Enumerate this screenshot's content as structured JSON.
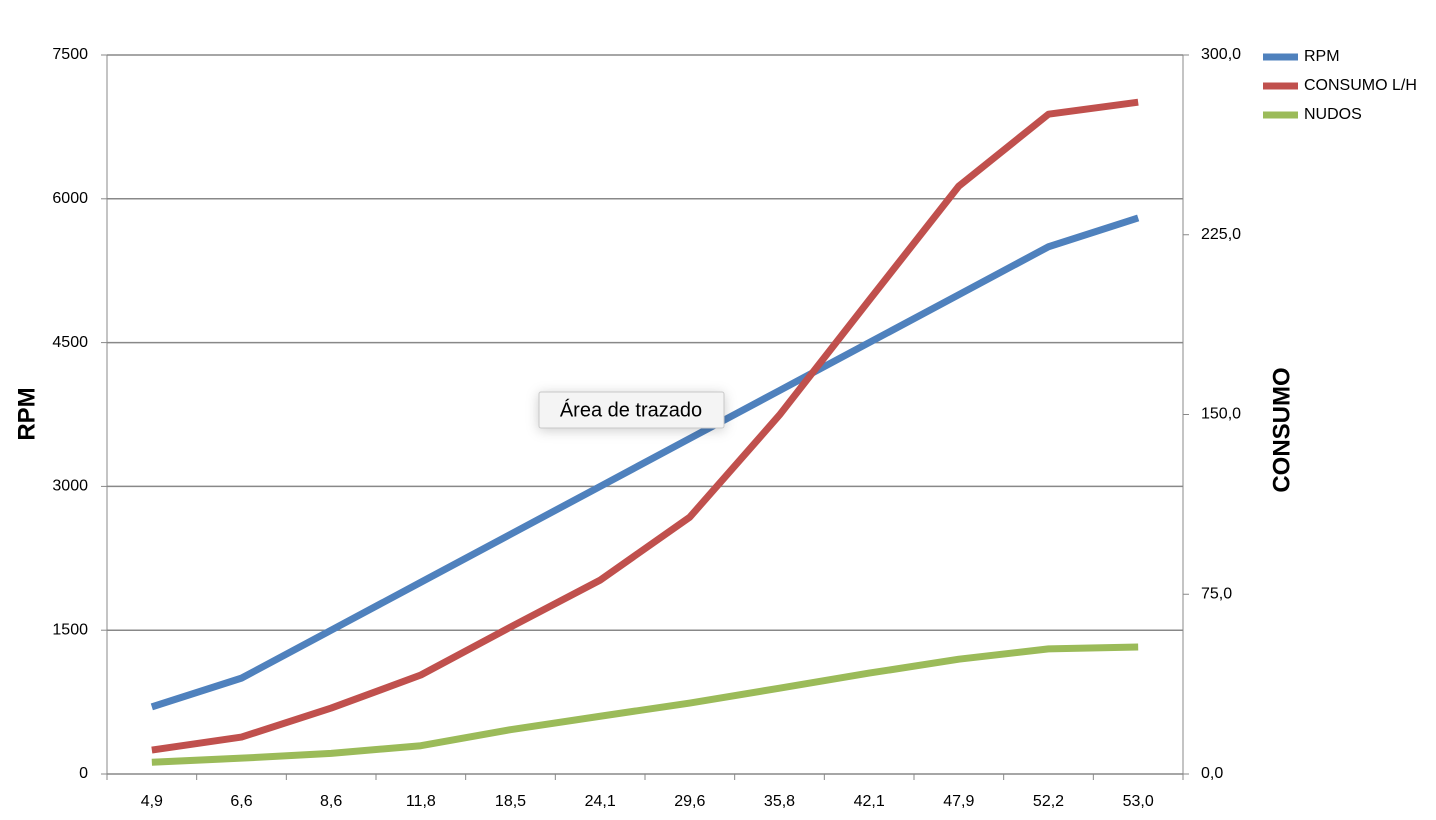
{
  "chart_data": {
    "type": "line",
    "y_label": "RPM",
    "y2_label": "CONSUMO",
    "tooltip": "Área de trazado",
    "categories": [
      "4,9",
      "6,6",
      "8,6",
      "11,8",
      "18,5",
      "24,1",
      "29,6",
      "35,8",
      "42,1",
      "47,9",
      "52,2",
      "53,0"
    ],
    "series": [
      {
        "name": "RPM",
        "color": "#4f81bd",
        "values": [
          700,
          1000,
          1500,
          2000,
          2500,
          3000,
          3500,
          4000,
          4500,
          5000,
          5500,
          5800
        ]
      },
      {
        "name": "CONSUMO L/H",
        "color": "#c0504d",
        "axis": "y2",
        "values": [
          10,
          15.4,
          27.5,
          41.3,
          61.3,
          80.9,
          107.2,
          149.8,
          197.7,
          245.3,
          275.3,
          280.3
        ]
      },
      {
        "name": "NUDOS",
        "color": "#9bbb59",
        "axis": "y2",
        "values": [
          4.9,
          6.6,
          8.6,
          11.8,
          18.5,
          24.1,
          29.6,
          35.8,
          42.1,
          47.9,
          52.2,
          53.0
        ]
      }
    ],
    "ylim": [
      0,
      7500
    ],
    "yticks": [
      0,
      1500,
      3000,
      4500,
      6000,
      7500
    ],
    "y2lim": [
      0,
      300
    ],
    "y2ticks": [
      {
        "value": 0,
        "label": "0,0"
      },
      {
        "value": 75,
        "label": "75,0"
      },
      {
        "value": 150,
        "label": "150,0"
      },
      {
        "value": 225,
        "label": "225,0"
      },
      {
        "value": 300,
        "label": "300,0"
      }
    ],
    "grid": true,
    "legend": "top-right"
  }
}
